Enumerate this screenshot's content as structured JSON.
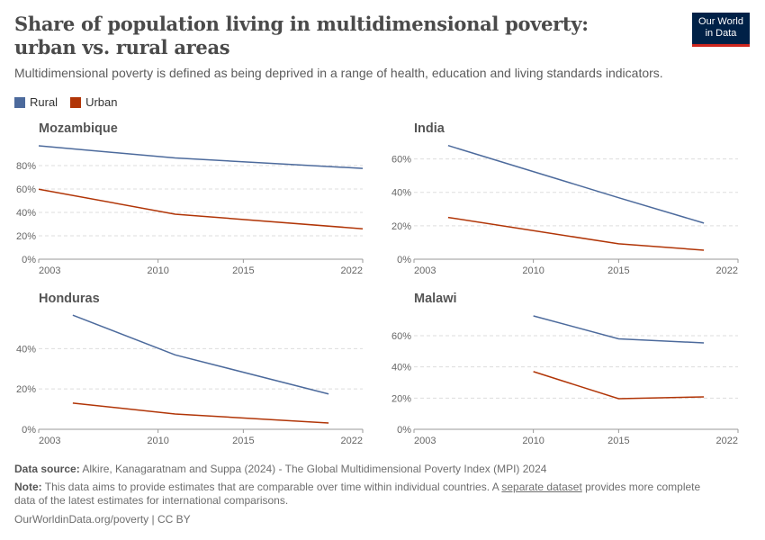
{
  "header": {
    "title": "Share of population living in multidimensional poverty: urban vs. rural areas",
    "subtitle": "Multidimensional poverty is defined as being deprived in a range of health, education and living standards indicators.",
    "logo": "Our World in Data"
  },
  "colors": {
    "Rural": "#4c6a9c",
    "Urban": "#b13507"
  },
  "legend": [
    {
      "name": "Rural",
      "color": "#4c6a9c"
    },
    {
      "name": "Urban",
      "color": "#b13507"
    }
  ],
  "chart_data": [
    {
      "type": "line",
      "title": "Mozambique",
      "xlim": [
        2003,
        2022
      ],
      "xticks": [
        2003,
        2010,
        2015,
        2022
      ],
      "ylim": [
        0,
        100
      ],
      "yticks": [
        0,
        20,
        40,
        60,
        80
      ],
      "ytick_format": "%",
      "grid": true,
      "series": [
        {
          "name": "Rural",
          "x": [
            2003,
            2011,
            2022
          ],
          "y": [
            96.9,
            86.5,
            77.6
          ]
        },
        {
          "name": "Urban",
          "x": [
            2003,
            2011,
            2022
          ],
          "y": [
            59.8,
            38.5,
            26.0
          ]
        }
      ]
    },
    {
      "type": "line",
      "title": "India",
      "xlim": [
        2003,
        2022
      ],
      "xticks": [
        2003,
        2010,
        2015,
        2022
      ],
      "ylim": [
        0,
        70
      ],
      "yticks": [
        0,
        20,
        40,
        60
      ],
      "ytick_format": "%",
      "grid": true,
      "series": [
        {
          "name": "Rural",
          "x": [
            2005,
            2015,
            2020
          ],
          "y": [
            68.0,
            36.8,
            21.6
          ]
        },
        {
          "name": "Urban",
          "x": [
            2005,
            2015,
            2020
          ],
          "y": [
            25.0,
            9.2,
            5.4
          ]
        }
      ]
    },
    {
      "type": "line",
      "title": "Honduras",
      "xlim": [
        2003,
        2022
      ],
      "xticks": [
        2003,
        2010,
        2015,
        2022
      ],
      "ylim": [
        0,
        58
      ],
      "yticks": [
        0,
        20,
        40
      ],
      "ytick_format": "%",
      "grid": true,
      "series": [
        {
          "name": "Rural",
          "x": [
            2005,
            2011,
            2020
          ],
          "y": [
            56.6,
            36.9,
            17.5
          ]
        },
        {
          "name": "Urban",
          "x": [
            2005,
            2011,
            2020
          ],
          "y": [
            13.0,
            7.6,
            3.1
          ]
        }
      ]
    },
    {
      "type": "line",
      "title": "Malawi",
      "xlim": [
        2003,
        2022
      ],
      "xticks": [
        2003,
        2010,
        2015,
        2022
      ],
      "ylim": [
        0,
        75
      ],
      "yticks": [
        0,
        20,
        40,
        60
      ],
      "ytick_format": "%",
      "grid": true,
      "series": [
        {
          "name": "Rural",
          "x": [
            2010,
            2015,
            2020
          ],
          "y": [
            72.7,
            58.0,
            55.4
          ]
        },
        {
          "name": "Urban",
          "x": [
            2010,
            2015,
            2020
          ],
          "y": [
            37.0,
            19.6,
            20.8
          ]
        }
      ]
    }
  ],
  "footer": {
    "source_label": "Data source:",
    "source": " Alkire, Kanagaratnam and Suppa (2024) - The Global Multidimensional Poverty Index (MPI) 2024",
    "note_label": "Note:",
    "note_a": " This data aims to provide estimates that are comparable over time within individual countries. A ",
    "note_link": "separate dataset",
    "note_b": " provides more complete data of the latest estimates for international comparisons.",
    "url": "OurWorldinData.org/poverty | CC BY"
  }
}
